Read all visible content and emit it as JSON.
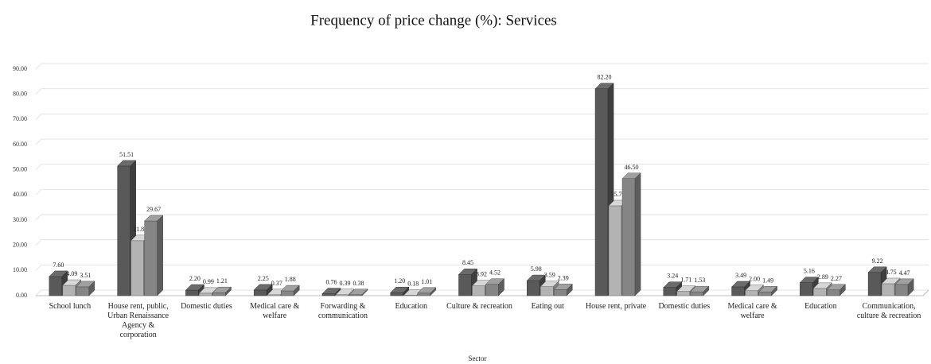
{
  "chart_data": {
    "type": "bar3d",
    "title": "Frequency of price change (%): Services",
    "xlabel": "Sector",
    "categories": [
      "School lunch",
      "House rent, public, Urban Renaissance Agency & corporation",
      "Domestic duties",
      "Medical care & welfare",
      "Forwarding & communication",
      "Education",
      "Culture & recreation",
      "Eating out",
      "House rent, private",
      "Domestic duties",
      "Medical care & welfare",
      "Education",
      "Communication, culture & recreation"
    ],
    "series": [
      {
        "color": "#595959",
        "values": [
          7.6,
          51.51,
          2.2,
          2.25,
          0.76,
          1.2,
          8.45,
          5.98,
          82.2,
          3.24,
          3.49,
          5.16,
          9.22
        ],
        "value_labels": [
          "7.60",
          "51.51",
          "2.20",
          "2.25",
          "0.76",
          "1.20",
          "8.45",
          "5.98",
          "82.20",
          "3.24",
          "3.49",
          "5.16",
          "9.22"
        ]
      },
      {
        "color": "#b3b3b3",
        "values": [
          4.09,
          21.84,
          0.99,
          0.37,
          0.39,
          0.18,
          3.92,
          3.59,
          35.7,
          1.71,
          2.0,
          2.89,
          4.75
        ],
        "value_labels": [
          "4.09",
          "21.84",
          "0.99",
          "0.37",
          "0.39",
          "0.18",
          "3.92",
          "3.59",
          "35.70",
          "1.71",
          "2.00",
          "2.89",
          "4.75"
        ]
      },
      {
        "color": "#858585",
        "values": [
          3.51,
          29.67,
          1.21,
          1.88,
          0.38,
          1.01,
          4.52,
          2.39,
          46.5,
          1.53,
          1.49,
          2.27,
          4.47
        ],
        "value_labels": [
          "3.51",
          "29.67",
          "1.21",
          "1.88",
          "0.38",
          "1.01",
          "4.52",
          "2.39",
          "46.50",
          "1.53",
          "1.49",
          "2.27",
          "4.47"
        ]
      }
    ],
    "ylim": [
      0,
      90
    ],
    "yticks": [
      {
        "value": 0,
        "label": "0.00"
      },
      {
        "value": 10,
        "label": "10.00"
      },
      {
        "value": 20,
        "label": "20.00"
      },
      {
        "value": 30,
        "label": "30.00"
      },
      {
        "value": 40,
        "label": "40.00"
      },
      {
        "value": 50,
        "label": "50.00"
      },
      {
        "value": 60,
        "label": "60.00"
      },
      {
        "value": 70,
        "label": "70.00"
      },
      {
        "value": 80,
        "label": "80.00"
      },
      {
        "value": 90,
        "label": "90.00"
      }
    ],
    "grid": true
  }
}
